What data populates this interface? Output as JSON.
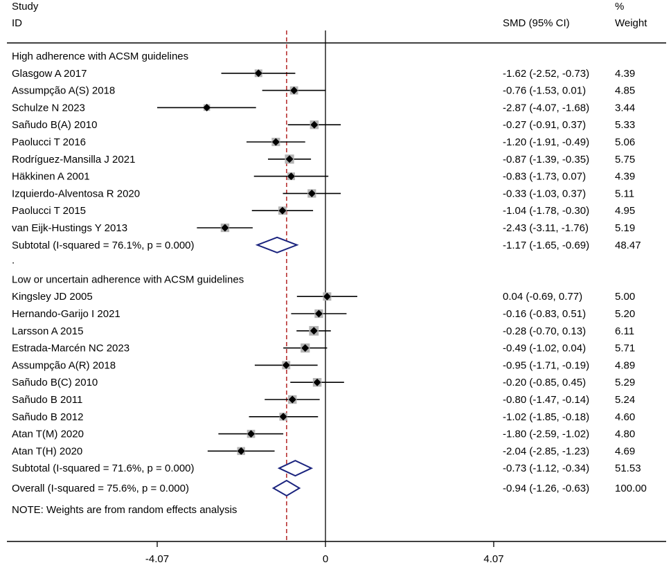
{
  "chart_data": {
    "type": "forest",
    "header": {
      "study_line1": "Study",
      "study_line2": "ID",
      "effect": "SMD (95% CI)",
      "weight_line1": "%",
      "weight_line2": "Weight"
    },
    "groups": [
      {
        "label": "High adherence with ACSM guidelines",
        "studies": [
          {
            "name": "Glasgow A 2017",
            "est": -1.62,
            "lo": -2.52,
            "hi": -0.73,
            "ci_text": "-1.62 (-2.52, -0.73)",
            "weight": "4.39"
          },
          {
            "name": "Assumpção A(S) 2018",
            "est": -0.76,
            "lo": -1.53,
            "hi": 0.01,
            "ci_text": "-0.76 (-1.53, 0.01)",
            "weight": "4.85"
          },
          {
            "name": "Schulze N 2023",
            "est": -2.87,
            "lo": -4.07,
            "hi": -1.68,
            "ci_text": "-2.87 (-4.07, -1.68)",
            "weight": "3.44"
          },
          {
            "name": "Sañudo B(A) 2010",
            "est": -0.27,
            "lo": -0.91,
            "hi": 0.37,
            "ci_text": "-0.27 (-0.91, 0.37)",
            "weight": "5.33"
          },
          {
            "name": "Paolucci T 2016",
            "est": -1.2,
            "lo": -1.91,
            "hi": -0.49,
            "ci_text": "-1.20 (-1.91, -0.49)",
            "weight": "5.06"
          },
          {
            "name": "Rodríguez-Mansilla J 2021",
            "est": -0.87,
            "lo": -1.39,
            "hi": -0.35,
            "ci_text": "-0.87 (-1.39, -0.35)",
            "weight": "5.75"
          },
          {
            "name": "Häkkinen A 2001",
            "est": -0.83,
            "lo": -1.73,
            "hi": 0.07,
            "ci_text": "-0.83 (-1.73, 0.07)",
            "weight": "4.39"
          },
          {
            "name": "Izquierdo-Alventosa R 2020",
            "est": -0.33,
            "lo": -1.03,
            "hi": 0.37,
            "ci_text": "-0.33 (-1.03, 0.37)",
            "weight": "5.11"
          },
          {
            "name": "Paolucci T 2015",
            "est": -1.04,
            "lo": -1.78,
            "hi": -0.3,
            "ci_text": "-1.04 (-1.78, -0.30)",
            "weight": "4.95"
          },
          {
            "name": "van Eijk-Hustings Y 2013",
            "est": -2.43,
            "lo": -3.11,
            "hi": -1.76,
            "ci_text": "-2.43 (-3.11, -1.76)",
            "weight": "5.19"
          }
        ],
        "subtotal": {
          "label": "Subtotal  (I-squared = 76.1%, p = 0.000)",
          "est": -1.17,
          "lo": -1.65,
          "hi": -0.69,
          "ci_text": "-1.17 (-1.65, -0.69)",
          "weight": "48.47"
        }
      },
      {
        "label": "Low or uncertain adherence with ACSM guidelines",
        "studies": [
          {
            "name": "Kingsley JD 2005",
            "est": 0.04,
            "lo": -0.69,
            "hi": 0.77,
            "ci_text": "0.04 (-0.69, 0.77)",
            "weight": "5.00"
          },
          {
            "name": "Hernando-Garijo I 2021",
            "est": -0.16,
            "lo": -0.83,
            "hi": 0.51,
            "ci_text": "-0.16 (-0.83, 0.51)",
            "weight": "5.20"
          },
          {
            "name": "Larsson A 2015",
            "est": -0.28,
            "lo": -0.7,
            "hi": 0.13,
            "ci_text": "-0.28 (-0.70, 0.13)",
            "weight": "6.11"
          },
          {
            "name": "Estrada-Marcén NC 2023",
            "est": -0.49,
            "lo": -1.02,
            "hi": 0.04,
            "ci_text": "-0.49 (-1.02, 0.04)",
            "weight": "5.71"
          },
          {
            "name": "Assumpção A(R) 2018",
            "est": -0.95,
            "lo": -1.71,
            "hi": -0.19,
            "ci_text": "-0.95 (-1.71, -0.19)",
            "weight": "4.89"
          },
          {
            "name": "Sañudo B(C) 2010",
            "est": -0.2,
            "lo": -0.85,
            "hi": 0.45,
            "ci_text": "-0.20 (-0.85, 0.45)",
            "weight": "5.29"
          },
          {
            "name": "Sañudo B 2011",
            "est": -0.8,
            "lo": -1.47,
            "hi": -0.14,
            "ci_text": "-0.80 (-1.47, -0.14)",
            "weight": "5.24"
          },
          {
            "name": "Sañudo B 2012",
            "est": -1.02,
            "lo": -1.85,
            "hi": -0.18,
            "ci_text": "-1.02 (-1.85, -0.18)",
            "weight": "4.60"
          },
          {
            "name": "Atan T(M) 2020",
            "est": -1.8,
            "lo": -2.59,
            "hi": -1.02,
            "ci_text": "-1.80 (-2.59, -1.02)",
            "weight": "4.80"
          },
          {
            "name": "Atan T(H) 2020",
            "est": -2.04,
            "lo": -2.85,
            "hi": -1.23,
            "ci_text": "-2.04 (-2.85, -1.23)",
            "weight": "4.69"
          }
        ],
        "subtotal": {
          "label": "Subtotal  (I-squared = 71.6%, p = 0.000)",
          "est": -0.73,
          "lo": -1.12,
          "hi": -0.34,
          "ci_text": "-0.73 (-1.12, -0.34)",
          "weight": "51.53"
        }
      }
    ],
    "spacer": ".",
    "overall": {
      "label": "Overall  (I-squared = 75.6%, p = 0.000)",
      "est": -0.94,
      "lo": -1.26,
      "hi": -0.63,
      "ci_text": "-0.94 (-1.26, -0.63)",
      "weight": "100.00"
    },
    "note": "NOTE: Weights are from random effects analysis",
    "x_ticks": [
      {
        "value": -4.07,
        "label": "-4.07"
      },
      {
        "value": 0,
        "label": "0"
      },
      {
        "value": 4.07,
        "label": "4.07"
      }
    ],
    "null_line": 0,
    "overall_line": -0.94,
    "colors": {
      "diamond": "#1a237e",
      "overall_line": "#b22222",
      "weight_box": "#b4b4b4",
      "marker": "#000000"
    }
  }
}
